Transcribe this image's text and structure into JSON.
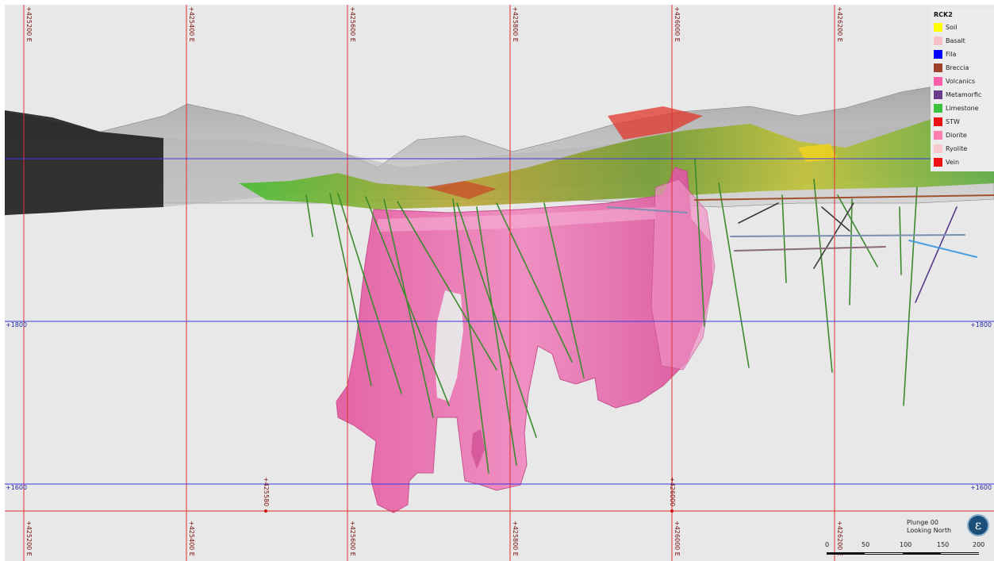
{
  "legend": {
    "title": "RCK2",
    "items": [
      {
        "label": "Soil",
        "color": "#ffff00"
      },
      {
        "label": "Basalt",
        "color": "#f7c1c8"
      },
      {
        "label": "Fila",
        "color": "#0000ff"
      },
      {
        "label": "Breccia",
        "color": "#a0422b"
      },
      {
        "label": "Volcanics",
        "color": "#ff5fa8"
      },
      {
        "label": "Metamorfic",
        "color": "#6b3c8c"
      },
      {
        "label": "Limestone",
        "color": "#3dc23d"
      },
      {
        "label": "STW",
        "color": "#ee1111"
      },
      {
        "label": "Diorite",
        "color": "#ff7fb0"
      },
      {
        "label": "Ryolite",
        "color": "#f9c8cc"
      },
      {
        "label": "Vein",
        "color": "#ee1111"
      }
    ]
  },
  "grid": {
    "easting_top": [
      "+425200 E",
      "+425400 E",
      "+425600 E",
      "+425800 E",
      "+426000 E",
      "+426200 E"
    ],
    "easting_bottom": [
      "+425200 E",
      "+425400 E",
      "+425600 E",
      "+425800 E",
      "+426000 E",
      "+426200 E"
    ],
    "easting_mid": [
      "+425580",
      "+426000"
    ],
    "rl_left": [
      "+1800",
      "+1600"
    ],
    "rl_right": [
      "+1800",
      "+1600"
    ]
  },
  "view": {
    "plunge": "Plunge 00",
    "direction": "Looking North",
    "compass": "ε"
  },
  "scale_bar": {
    "labels": [
      "0",
      "50",
      "100",
      "150",
      "200"
    ]
  },
  "colors": {
    "grid_red": "#e03030",
    "grid_blue": "#3a3ae0",
    "orebody_pink": "#ea6fae",
    "drillhole_green": "#3b8a2e",
    "background": "#e8e8e8"
  }
}
